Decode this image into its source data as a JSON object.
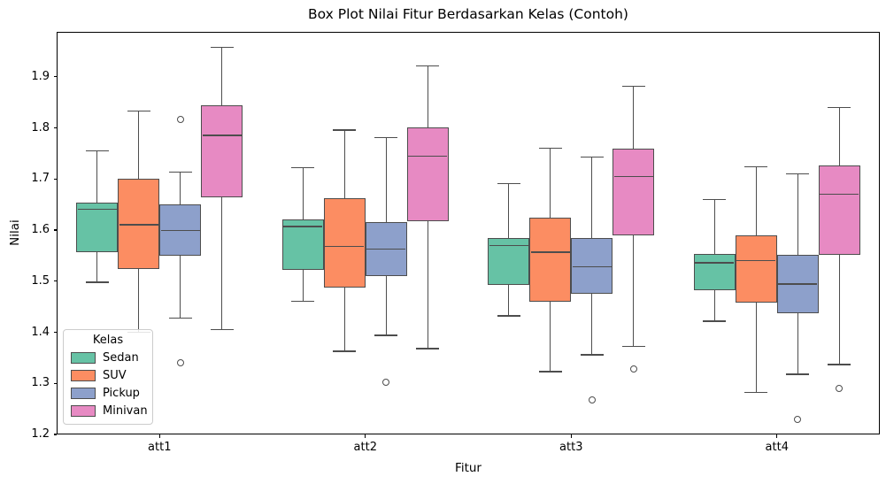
{
  "figure": {
    "title": "Box Plot Nilai Fitur Berdasarkan Kelas (Contoh)",
    "xlabel": "Fitur",
    "ylabel": "Nilai",
    "legend_title": "Kelas"
  },
  "chart_data": {
    "type": "boxplot",
    "title": "Box Plot Nilai Fitur Berdasarkan Kelas (Contoh)",
    "xlabel": "Fitur",
    "ylabel": "Nilai",
    "categories": [
      "att1",
      "att2",
      "att3",
      "att4"
    ],
    "y_ticks": [
      1.2,
      1.3,
      1.4,
      1.5,
      1.6,
      1.7,
      1.8,
      1.9
    ],
    "ylim": [
      1.2,
      1.988
    ],
    "legend_position": "lower left",
    "grid": false,
    "line_color": "#4d4d4d",
    "series": [
      {
        "name": "Sedan",
        "color": "#66c2a5",
        "boxes": [
          {
            "whislo": 1.498,
            "q1": 1.556,
            "med": 1.641,
            "q3": 1.654,
            "whishi": 1.755,
            "outliers": []
          },
          {
            "whislo": 1.461,
            "q1": 1.522,
            "med": 1.607,
            "q3": 1.62,
            "whishi": 1.722,
            "outliers": []
          },
          {
            "whislo": 1.432,
            "q1": 1.493,
            "med": 1.57,
            "q3": 1.585,
            "whishi": 1.691,
            "outliers": []
          },
          {
            "whislo": 1.422,
            "q1": 1.482,
            "med": 1.536,
            "q3": 1.553,
            "whishi": 1.66,
            "outliers": []
          }
        ]
      },
      {
        "name": "SUV",
        "color": "#fc8d62",
        "boxes": [
          {
            "whislo": 1.4,
            "q1": 1.524,
            "med": 1.61,
            "q3": 1.701,
            "whishi": 1.833,
            "outliers": []
          },
          {
            "whislo": 1.363,
            "q1": 1.487,
            "med": 1.568,
            "q3": 1.663,
            "whishi": 1.796,
            "outliers": []
          },
          {
            "whislo": 1.323,
            "q1": 1.459,
            "med": 1.557,
            "q3": 1.624,
            "whishi": 1.76,
            "outliers": []
          },
          {
            "whislo": 1.282,
            "q1": 1.458,
            "med": 1.54,
            "q3": 1.59,
            "whishi": 1.724,
            "outliers": []
          }
        ]
      },
      {
        "name": "Pickup",
        "color": "#8da0cb",
        "boxes": [
          {
            "whislo": 1.428,
            "q1": 1.549,
            "med": 1.599,
            "q3": 1.651,
            "whishi": 1.714,
            "outliers": [
              1.817,
              1.34
            ]
          },
          {
            "whislo": 1.394,
            "q1": 1.51,
            "med": 1.563,
            "q3": 1.616,
            "whishi": 1.781,
            "outliers": [
              1.303
            ]
          },
          {
            "whislo": 1.356,
            "q1": 1.476,
            "med": 1.528,
            "q3": 1.585,
            "whishi": 1.743,
            "outliers": [
              1.267
            ]
          },
          {
            "whislo": 1.318,
            "q1": 1.438,
            "med": 1.494,
            "q3": 1.551,
            "whishi": 1.71,
            "outliers": [
              1.23
            ]
          }
        ]
      },
      {
        "name": "Minivan",
        "color": "#e78ac3",
        "boxes": [
          {
            "whislo": 1.405,
            "q1": 1.664,
            "med": 1.785,
            "q3": 1.845,
            "whishi": 1.958,
            "outliers": []
          },
          {
            "whislo": 1.368,
            "q1": 1.617,
            "med": 1.745,
            "q3": 1.801,
            "whishi": 1.921,
            "outliers": []
          },
          {
            "whislo": 1.372,
            "q1": 1.59,
            "med": 1.705,
            "q3": 1.759,
            "whishi": 1.882,
            "outliers": [
              1.328
            ]
          },
          {
            "whislo": 1.337,
            "q1": 1.552,
            "med": 1.67,
            "q3": 1.726,
            "whishi": 1.84,
            "outliers": [
              1.29
            ]
          }
        ]
      }
    ]
  }
}
